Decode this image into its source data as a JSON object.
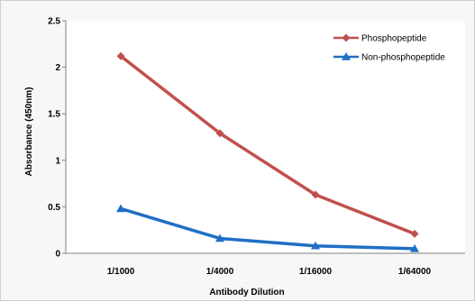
{
  "chart_data": {
    "type": "line",
    "categories": [
      "1/1000",
      "1/4000",
      "1/16000",
      "1/64000"
    ],
    "series": [
      {
        "name": "Phosphopeptide",
        "values": [
          2.12,
          1.29,
          0.63,
          0.21
        ],
        "color": "#c0504d",
        "marker": "diamond"
      },
      {
        "name": "Non-phosphopeptide",
        "values": [
          0.48,
          0.16,
          0.08,
          0.05
        ],
        "color": "#1f6fc5",
        "marker": "triangle"
      }
    ],
    "xlabel": "Antibody Dilution",
    "ylabel": "Absorbance (450nm)",
    "ylim": [
      0,
      2.5
    ],
    "yticks": [
      "0",
      "0.5",
      "1",
      "1.5",
      "2",
      "2.5"
    ],
    "ytick_values": [
      0,
      0.5,
      1,
      1.5,
      2,
      2.5
    ],
    "grid": false,
    "legend_position": "top-right"
  }
}
